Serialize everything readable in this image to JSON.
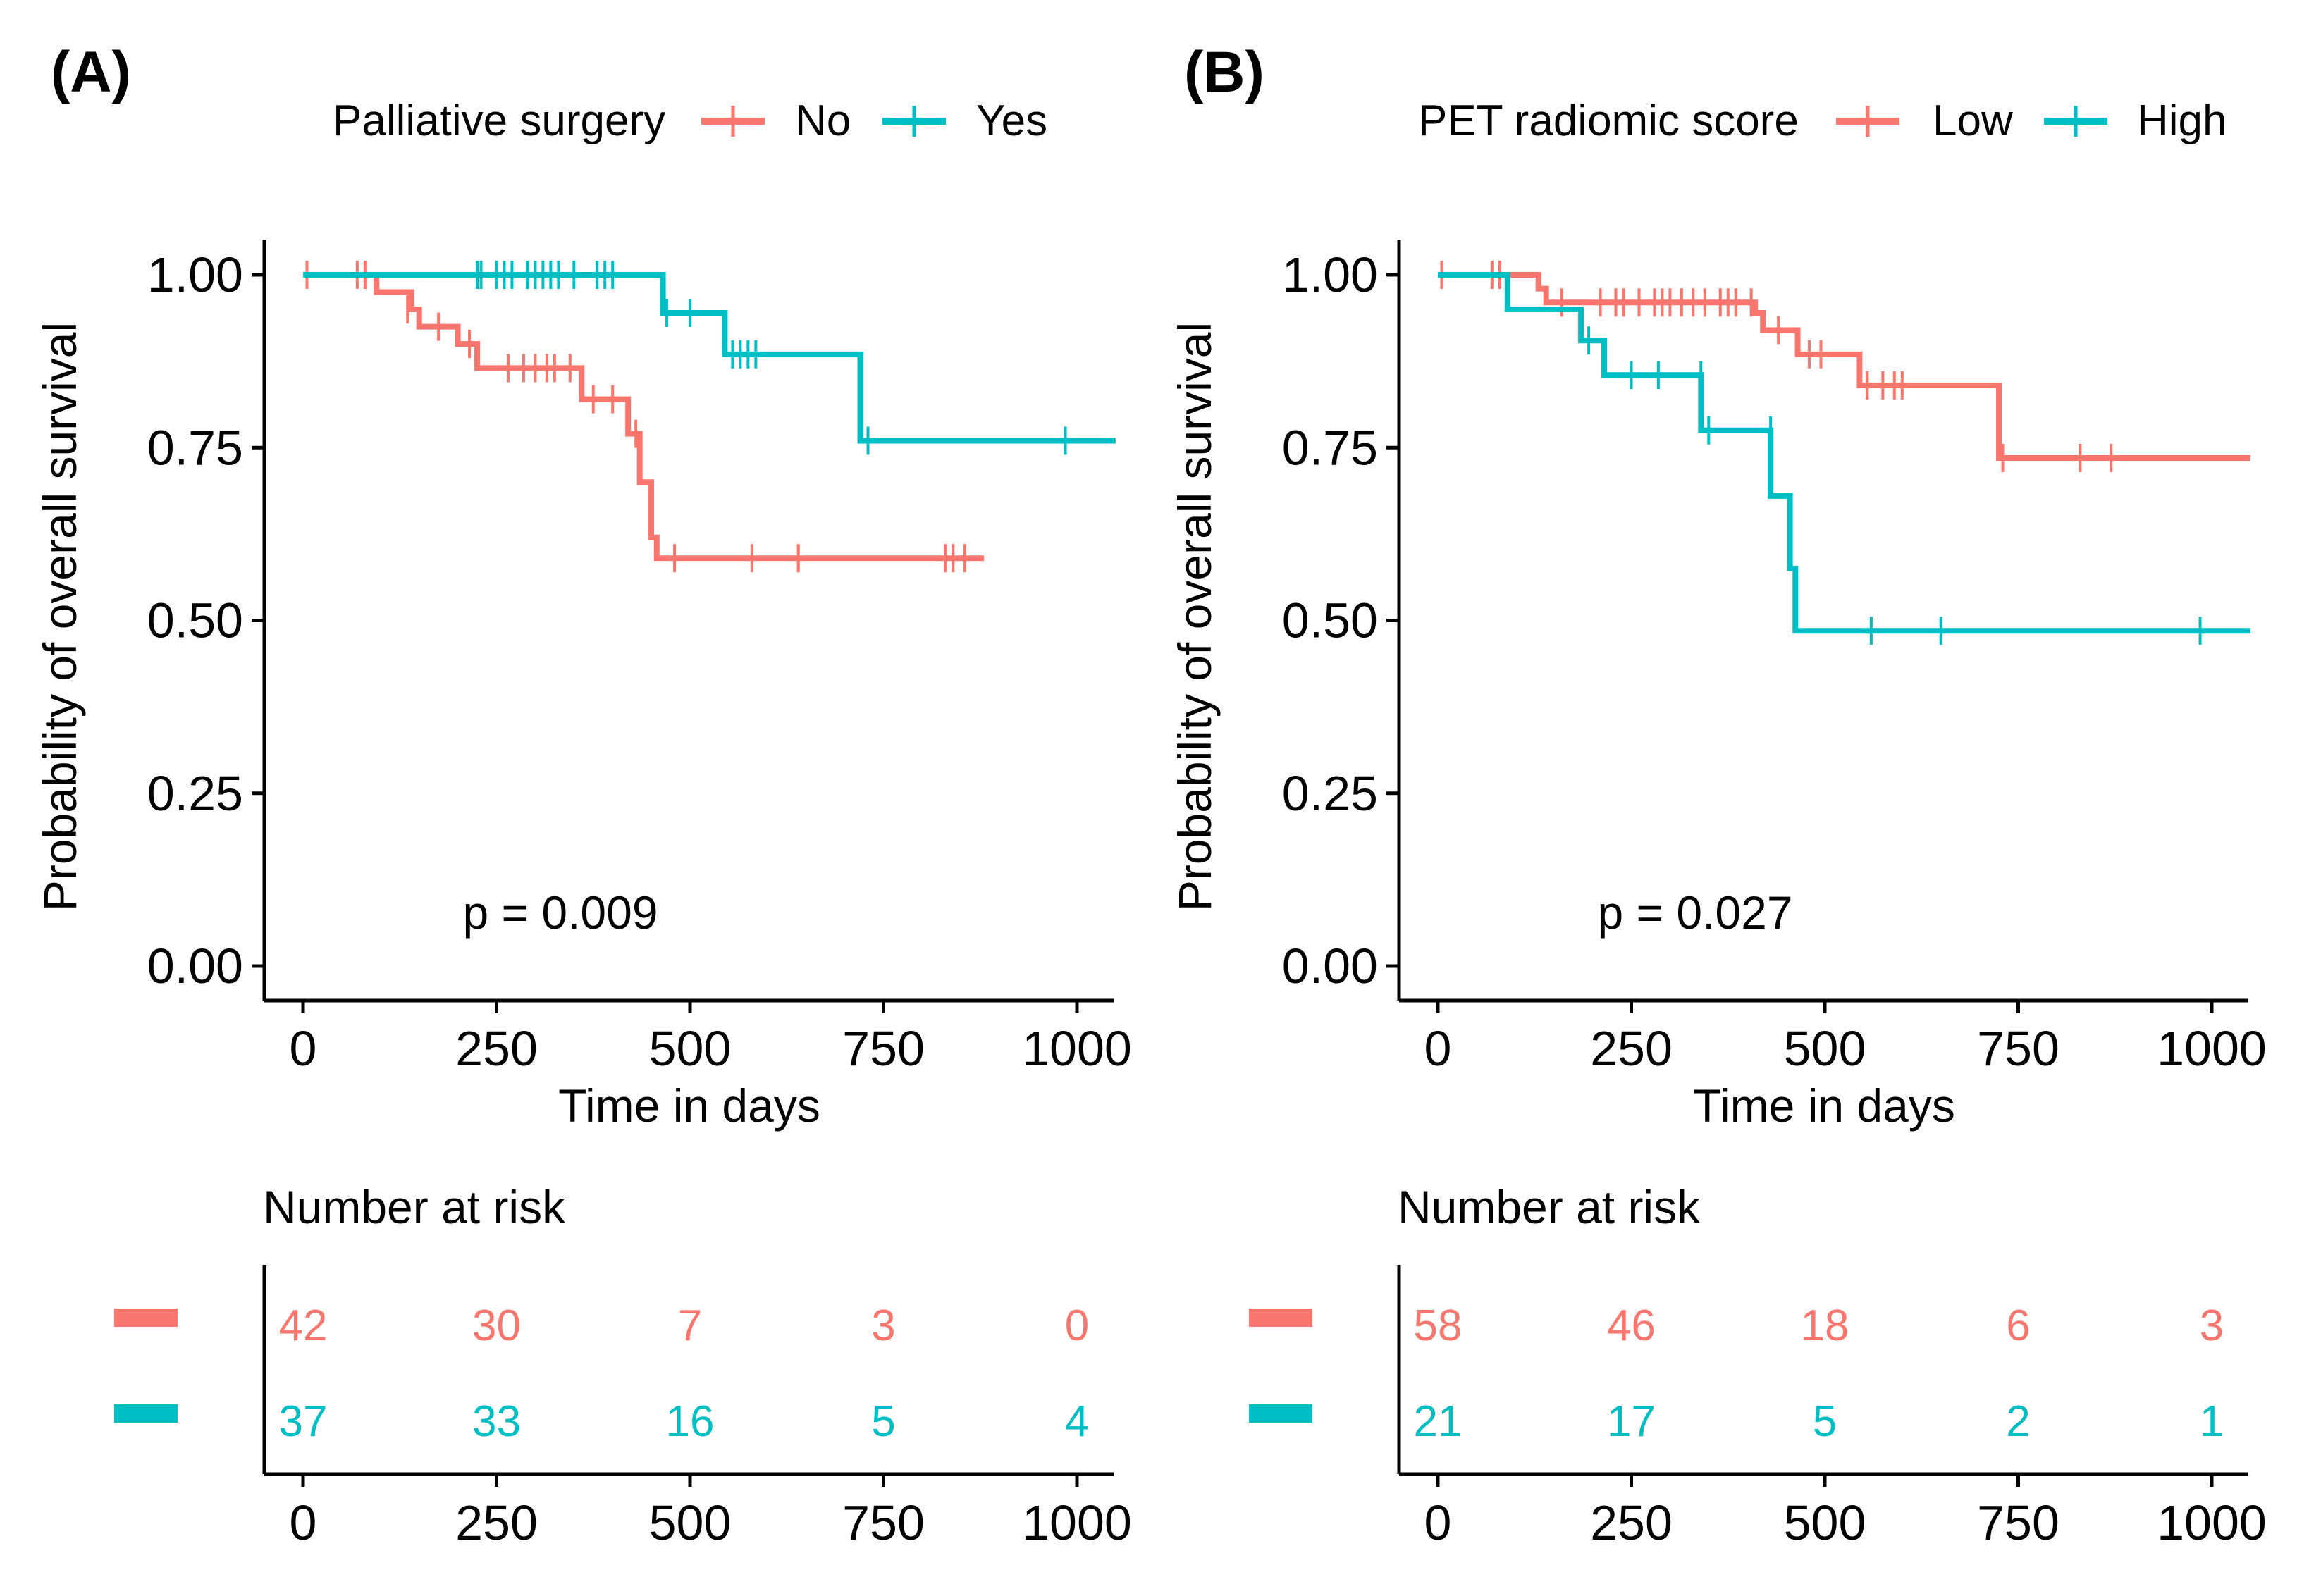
{
  "chart_data": [
    {
      "type": "line",
      "subtype": "kaplan-meier",
      "panel_label": "(A)",
      "legend_title": "Palliative surgery",
      "xlabel": "Time in days",
      "ylabel": "Probability of overall survival",
      "xlim": [
        -50,
        1050
      ],
      "ylim": [
        0,
        1
      ],
      "xticks": [
        0,
        250,
        500,
        750,
        1000
      ],
      "xtick_labels": [
        "0",
        "250",
        "500",
        "750",
        "1000"
      ],
      "yticks": [
        0,
        0.25,
        0.5,
        0.75,
        1.0
      ],
      "ytick_labels": [
        "0.00",
        "0.25",
        "0.50",
        "0.75",
        "1.00"
      ],
      "pvalue_text": "p = 0.009",
      "pvalue_pos": [
        330,
        0.07
      ],
      "series": [
        {
          "name": "No",
          "color": "#F8766D",
          "steps": [
            [
              0,
              1.0
            ],
            [
              95,
              0.975
            ],
            [
              140,
              0.95
            ],
            [
              150,
              0.925
            ],
            [
              200,
              0.9
            ],
            [
              225,
              0.865
            ],
            [
              360,
              0.82
            ],
            [
              420,
              0.77
            ],
            [
              435,
              0.7
            ],
            [
              450,
              0.62
            ],
            [
              457,
              0.59
            ],
            [
              880,
              0.59
            ]
          ],
          "censored": [
            [
              5,
              1.0
            ],
            [
              70,
              1.0
            ],
            [
              80,
              1.0
            ],
            [
              135,
              0.95
            ],
            [
              175,
              0.925
            ],
            [
              215,
              0.9
            ],
            [
              265,
              0.865
            ],
            [
              285,
              0.865
            ],
            [
              300,
              0.865
            ],
            [
              315,
              0.865
            ],
            [
              325,
              0.865
            ],
            [
              345,
              0.865
            ],
            [
              375,
              0.82
            ],
            [
              400,
              0.82
            ],
            [
              430,
              0.77
            ],
            [
              480,
              0.59
            ],
            [
              580,
              0.59
            ],
            [
              640,
              0.59
            ],
            [
              830,
              0.59
            ],
            [
              840,
              0.59
            ],
            [
              855,
              0.59
            ]
          ]
        },
        {
          "name": "Yes",
          "color": "#00BFC4",
          "steps": [
            [
              0,
              1.0
            ],
            [
              465,
              0.945
            ],
            [
              545,
              0.885
            ],
            [
              720,
              0.76
            ],
            [
              1050,
              0.76
            ]
          ],
          "censored": [
            [
              225,
              1.0
            ],
            [
              230,
              1.0
            ],
            [
              250,
              1.0
            ],
            [
              260,
              1.0
            ],
            [
              270,
              1.0
            ],
            [
              290,
              1.0
            ],
            [
              300,
              1.0
            ],
            [
              310,
              1.0
            ],
            [
              320,
              1.0
            ],
            [
              330,
              1.0
            ],
            [
              350,
              1.0
            ],
            [
              380,
              1.0
            ],
            [
              390,
              1.0
            ],
            [
              400,
              1.0
            ],
            [
              470,
              0.945
            ],
            [
              500,
              0.945
            ],
            [
              555,
              0.885
            ],
            [
              565,
              0.885
            ],
            [
              575,
              0.885
            ],
            [
              585,
              0.885
            ],
            [
              730,
              0.76
            ],
            [
              985,
              0.76
            ]
          ]
        }
      ],
      "risk_table": {
        "title": "Number at risk",
        "times": [
          0,
          250,
          500,
          750,
          1000
        ],
        "rows": [
          {
            "name": "No",
            "color": "#F8766D",
            "values": [
              "42",
              "30",
              "7",
              "3",
              "0"
            ]
          },
          {
            "name": "Yes",
            "color": "#00BFC4",
            "values": [
              "37",
              "33",
              "16",
              "5",
              "4"
            ]
          }
        ],
        "xtick_labels": [
          "0",
          "250",
          "500",
          "750",
          "1000"
        ]
      }
    },
    {
      "type": "line",
      "subtype": "kaplan-meier",
      "panel_label": "(B)",
      "legend_title": "PET radiomic score",
      "xlabel": "Time in days",
      "ylabel": "Probability of overall survival",
      "xlim": [
        -50,
        1050
      ],
      "ylim": [
        0,
        1
      ],
      "xticks": [
        0,
        250,
        500,
        750,
        1000
      ],
      "xtick_labels": [
        "0",
        "250",
        "500",
        "750",
        "1000"
      ],
      "yticks": [
        0,
        0.25,
        0.5,
        0.75,
        1.0
      ],
      "ytick_labels": [
        "0.00",
        "0.25",
        "0.50",
        "0.75",
        "1.00"
      ],
      "pvalue_text": "p = 0.027",
      "pvalue_pos": [
        330,
        0.07
      ],
      "series": [
        {
          "name": "Low",
          "color": "#F8766D",
          "steps": [
            [
              0,
              1.0
            ],
            [
              130,
              0.98
            ],
            [
              140,
              0.96
            ],
            [
              410,
              0.945
            ],
            [
              420,
              0.92
            ],
            [
              465,
              0.885
            ],
            [
              545,
              0.84
            ],
            [
              725,
              0.735
            ],
            [
              1050,
              0.735
            ]
          ],
          "censored": [
            [
              5,
              1.0
            ],
            [
              70,
              1.0
            ],
            [
              80,
              1.0
            ],
            [
              160,
              0.96
            ],
            [
              210,
              0.96
            ],
            [
              230,
              0.96
            ],
            [
              240,
              0.96
            ],
            [
              260,
              0.96
            ],
            [
              280,
              0.96
            ],
            [
              290,
              0.96
            ],
            [
              300,
              0.96
            ],
            [
              315,
              0.96
            ],
            [
              330,
              0.96
            ],
            [
              345,
              0.96
            ],
            [
              365,
              0.96
            ],
            [
              375,
              0.96
            ],
            [
              385,
              0.96
            ],
            [
              405,
              0.96
            ],
            [
              440,
              0.92
            ],
            [
              480,
              0.885
            ],
            [
              495,
              0.885
            ],
            [
              555,
              0.84
            ],
            [
              575,
              0.84
            ],
            [
              590,
              0.84
            ],
            [
              600,
              0.84
            ],
            [
              730,
              0.735
            ],
            [
              830,
              0.735
            ],
            [
              870,
              0.735
            ]
          ]
        },
        {
          "name": "High",
          "color": "#00BFC4",
          "steps": [
            [
              0,
              1.0
            ],
            [
              90,
              0.95
            ],
            [
              185,
              0.905
            ],
            [
              215,
              0.855
            ],
            [
              340,
              0.775
            ],
            [
              430,
              0.68
            ],
            [
              455,
              0.575
            ],
            [
              462,
              0.485
            ],
            [
              1050,
              0.485
            ]
          ],
          "censored": [
            [
              195,
              0.905
            ],
            [
              250,
              0.855
            ],
            [
              285,
              0.855
            ],
            [
              340,
              0.855
            ],
            [
              350,
              0.775
            ],
            [
              430,
              0.775
            ],
            [
              560,
              0.485
            ],
            [
              650,
              0.485
            ],
            [
              985,
              0.485
            ]
          ]
        }
      ],
      "risk_table": {
        "title": "Number at risk",
        "times": [
          0,
          250,
          500,
          750,
          1000
        ],
        "rows": [
          {
            "name": "Low",
            "color": "#F8766D",
            "values": [
              "58",
              "46",
              "18",
              "6",
              "3"
            ]
          },
          {
            "name": "High",
            "color": "#00BFC4",
            "values": [
              "21",
              "17",
              "5",
              "2",
              "1"
            ]
          }
        ],
        "xtick_labels": [
          "0",
          "250",
          "500",
          "750",
          "1000"
        ]
      }
    }
  ]
}
